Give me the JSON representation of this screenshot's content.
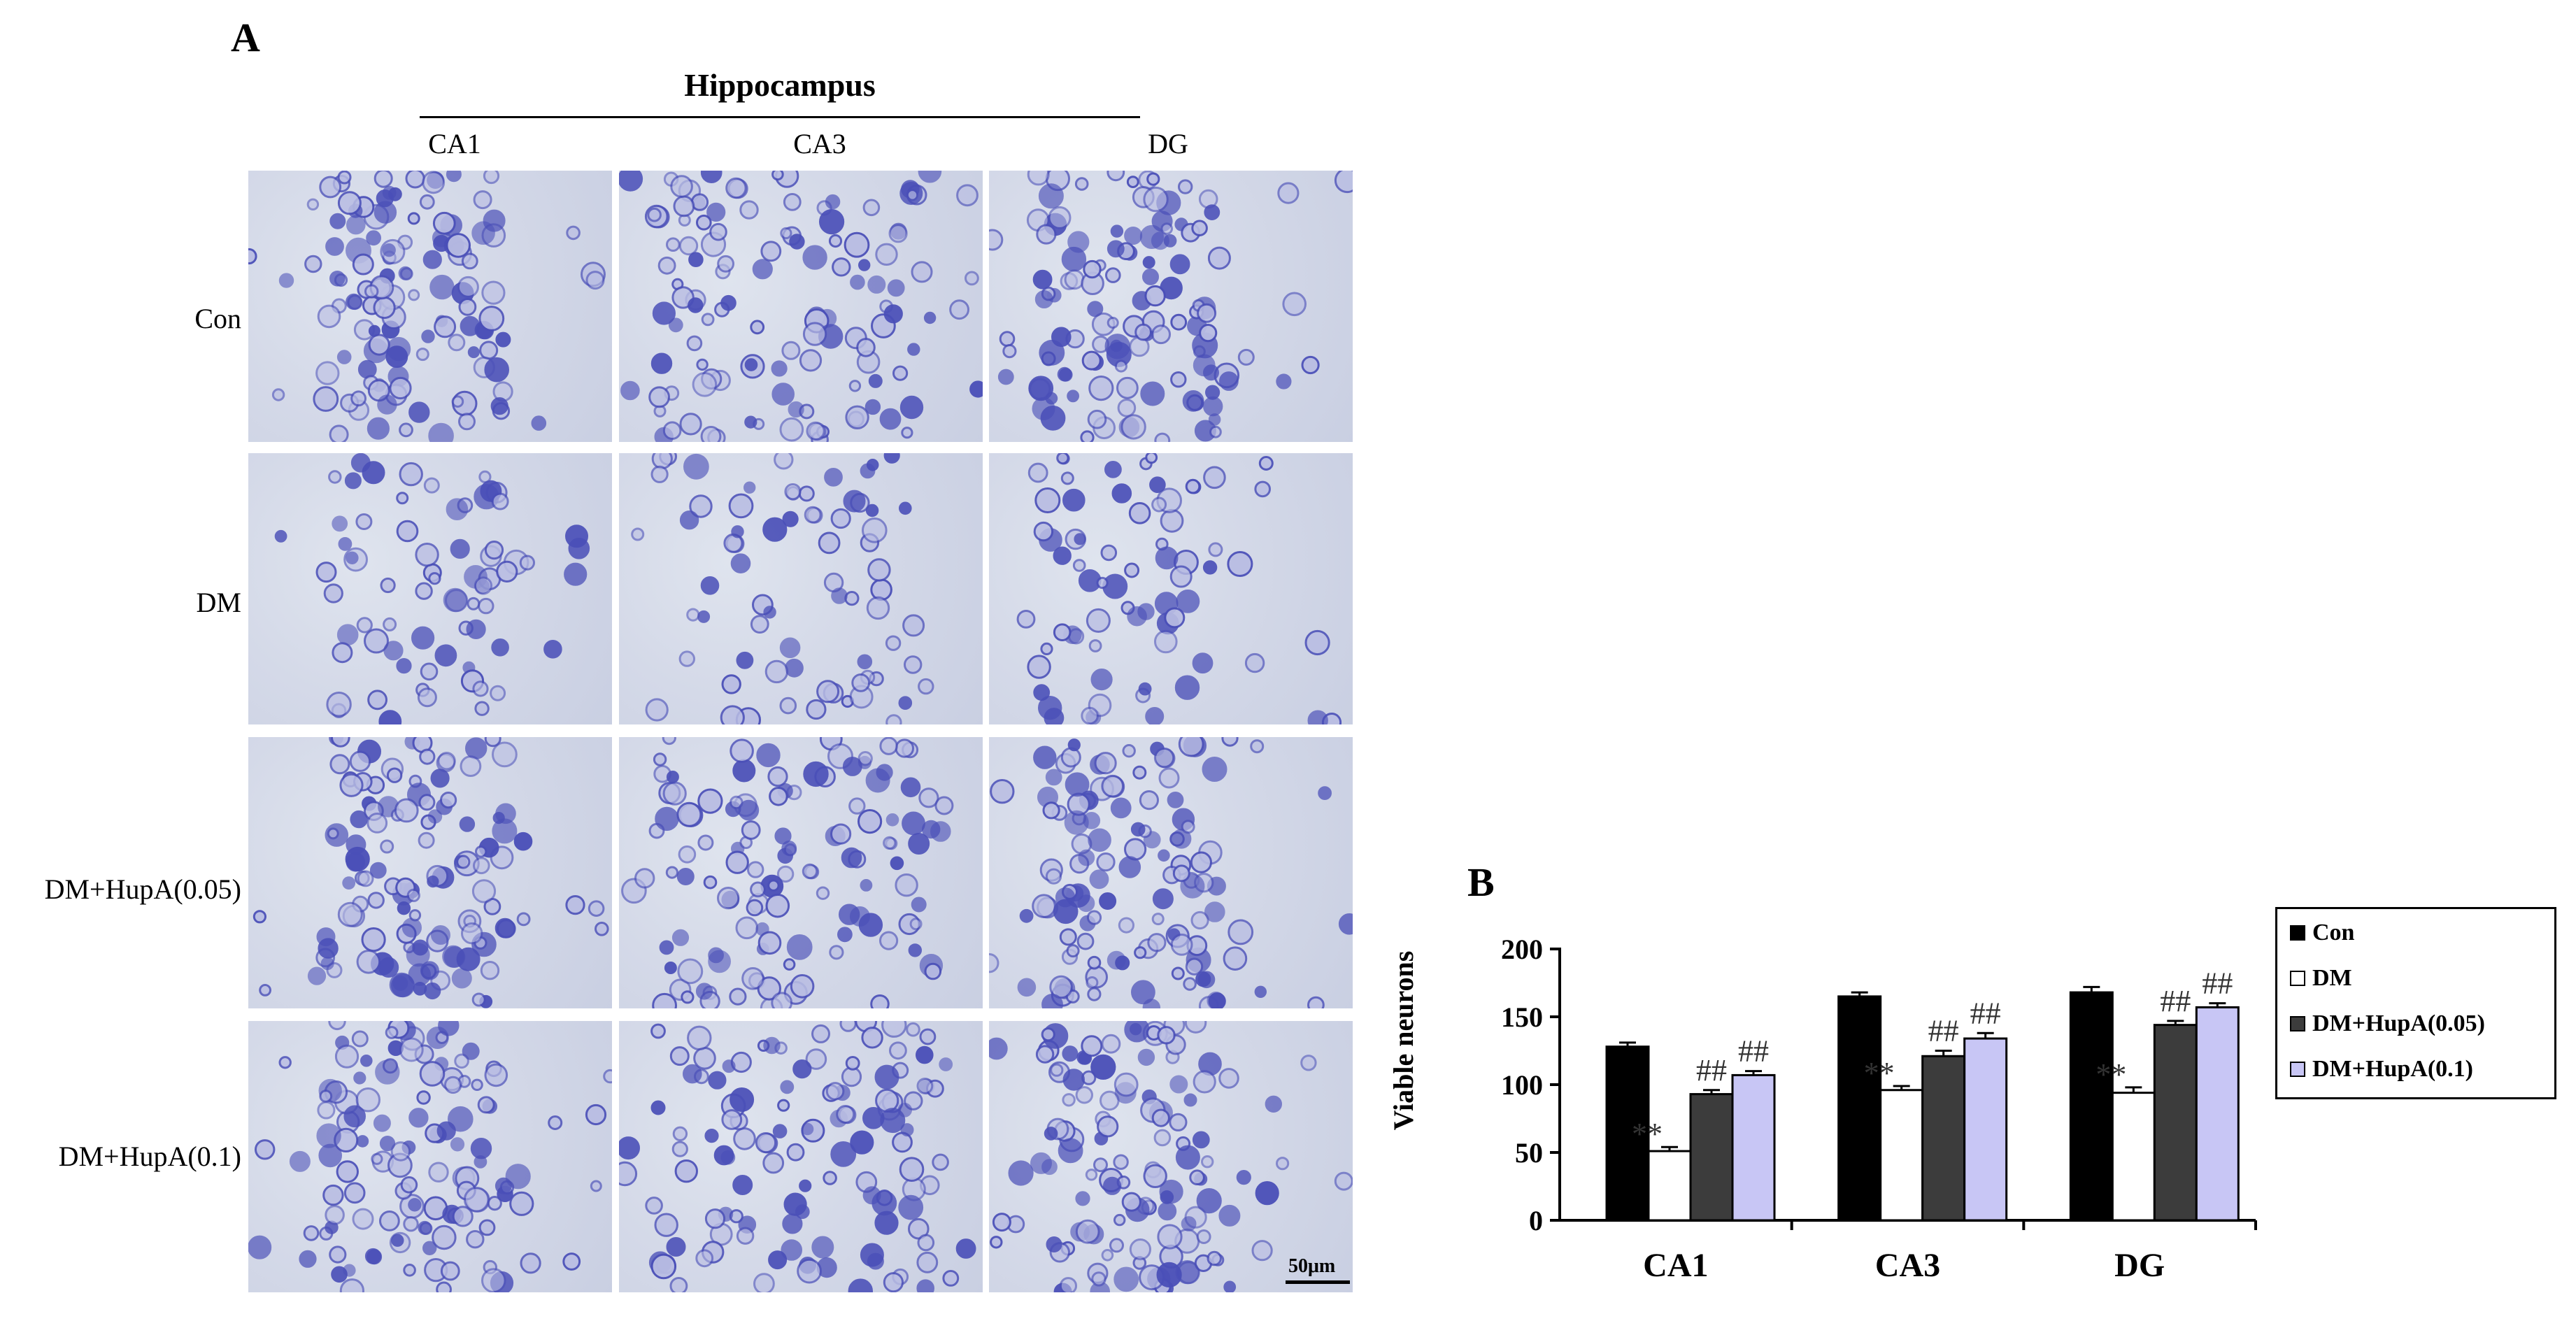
{
  "panel_a": {
    "letter": "A",
    "region_title": "Hippocampus",
    "columns": [
      "CA1",
      "CA3",
      "DG"
    ],
    "rows": [
      "Con",
      "DM",
      "DM+HupA(0.05)",
      "DM+HupA(0.1)"
    ],
    "scale_bar": "50μm",
    "stain_color": "#4a4fb8"
  },
  "panel_b": {
    "letter": "B"
  },
  "chart_data": {
    "type": "bar",
    "ylabel": "Viable  neurons",
    "xlabel": "",
    "categories": [
      "CA1",
      "CA3",
      "DG"
    ],
    "ylim": [
      0,
      200
    ],
    "yticks": [
      0,
      50,
      100,
      150,
      200
    ],
    "legend_position": "top-right",
    "series": [
      {
        "name": "Con",
        "color": "#000000",
        "values": [
          128,
          165,
          168
        ],
        "errors": [
          3,
          3,
          4
        ],
        "annotations": [
          "",
          "",
          ""
        ]
      },
      {
        "name": "DM",
        "color": "#ffffff",
        "values": [
          51,
          96,
          94
        ],
        "errors": [
          3,
          3,
          4
        ],
        "annotations": [
          "**",
          "**",
          "**"
        ]
      },
      {
        "name": "DM+HupA(0.05)",
        "color": "#3c3c3c",
        "values": [
          93,
          121,
          144
        ],
        "errors": [
          3,
          4,
          3
        ],
        "annotations": [
          "##",
          "##",
          "##"
        ]
      },
      {
        "name": "DM+HupA(0.1)",
        "color": "#c8c6f5",
        "values": [
          107,
          134,
          157
        ],
        "errors": [
          3,
          4,
          3
        ],
        "annotations": [
          "##",
          "##",
          "##"
        ]
      }
    ]
  }
}
